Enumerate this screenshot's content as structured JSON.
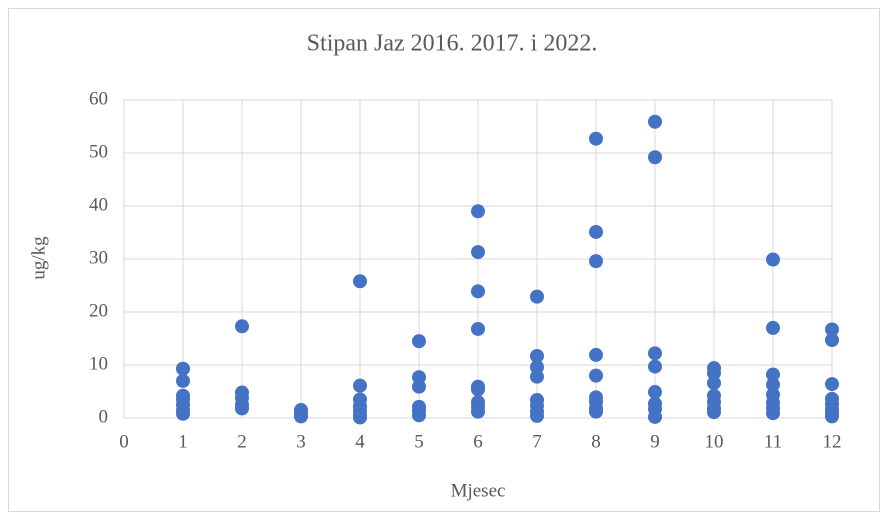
{
  "chart_data": {
    "type": "scatter",
    "title": "Stipan Jaz 2016. 2017. i 2022.",
    "x_label": "Mjesec",
    "y_label": "ug/kg",
    "series": [
      {
        "color": "#4472c4",
        "x": [
          1,
          1,
          1,
          1,
          1,
          1,
          1,
          2,
          2,
          2,
          2,
          2,
          3,
          3,
          3,
          4,
          4,
          4,
          4,
          4,
          4,
          4,
          5,
          5,
          5,
          5,
          5,
          5,
          6,
          6,
          6,
          6,
          6,
          6,
          6,
          6,
          6,
          7,
          7,
          7,
          7,
          7,
          7,
          7,
          7,
          8,
          8,
          8,
          8,
          8,
          8,
          8,
          8,
          8,
          9,
          9,
          9,
          9,
          9,
          9,
          9,
          9,
          10,
          10,
          10,
          10,
          10,
          10,
          10,
          11,
          11,
          11,
          11,
          11,
          11,
          11,
          11,
          12,
          12,
          12,
          12,
          12,
          12,
          12,
          12
        ],
        "values": [
          9.3,
          7.0,
          4.2,
          3.5,
          2.5,
          1.5,
          0.8,
          17.3,
          4.8,
          3.8,
          2.5,
          1.8,
          1.5,
          0.8,
          0.3,
          25.8,
          6.1,
          3.5,
          2.2,
          1.3,
          0.5,
          0.1,
          14.5,
          7.7,
          5.9,
          2.1,
          1.4,
          0.5,
          39.0,
          31.3,
          23.9,
          16.8,
          5.9,
          5.4,
          3.0,
          2.1,
          1.2,
          22.9,
          11.7,
          9.6,
          7.8,
          3.4,
          2.3,
          1.2,
          0.4,
          52.7,
          35.1,
          29.6,
          11.9,
          8.0,
          3.9,
          3.1,
          1.8,
          1.2,
          55.9,
          49.2,
          12.2,
          9.7,
          4.9,
          2.7,
          1.7,
          0.2,
          9.4,
          8.5,
          6.6,
          4.2,
          3.0,
          1.8,
          1.1,
          29.9,
          17.0,
          8.2,
          6.3,
          4.4,
          2.9,
          1.8,
          0.9,
          16.7,
          14.7,
          6.4,
          3.6,
          2.6,
          1.6,
          0.8,
          0.3
        ]
      }
    ],
    "xlim": [
      0,
      12
    ],
    "xticks": [
      0,
      1,
      2,
      3,
      4,
      5,
      6,
      7,
      8,
      9,
      10,
      11,
      12
    ],
    "ylim": [
      0,
      60
    ],
    "yticks": [
      0,
      10,
      20,
      30,
      40,
      50,
      60
    ],
    "grid": true
  }
}
